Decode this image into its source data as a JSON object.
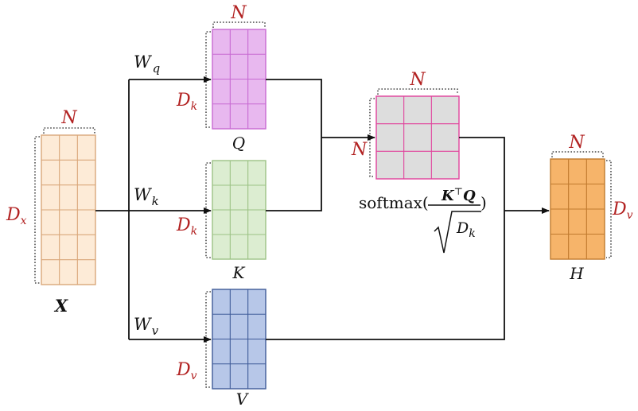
{
  "matrices": {
    "x": {
      "name": "X",
      "cols_label": "N",
      "rows_label_main": "D",
      "rows_label_sub": "x",
      "fill": "#fdebd7",
      "stroke": "#d9a77a"
    },
    "q": {
      "name": "Q",
      "cols_label": "N",
      "rows_label_main": "D",
      "rows_label_sub": "k",
      "fill": "#e8b8ef",
      "stroke": "#c76ad2"
    },
    "k": {
      "name": "K",
      "cols_label": "",
      "rows_label_main": "D",
      "rows_label_sub": "k",
      "fill": "#dcedd1",
      "stroke": "#9cc285"
    },
    "v": {
      "name": "V",
      "cols_label": "",
      "rows_label_main": "D",
      "rows_label_sub": "v",
      "fill": "#b7c7e8",
      "stroke": "#3f5b98"
    },
    "a": {
      "name": "",
      "cols_label": "N",
      "rows_label_main": "N",
      "rows_label_sub": "",
      "fill": "#dddddd",
      "stroke": "#e0439c"
    },
    "h": {
      "name": "H",
      "cols_label": "N",
      "rows_label_main": "D",
      "rows_label_sub": "v",
      "fill": "#f6b46a",
      "stroke": "#c07a2e"
    }
  },
  "weights": {
    "q": {
      "main": "W",
      "sub": "q"
    },
    "k": {
      "main": "W",
      "sub": "k"
    },
    "v": {
      "main": "W",
      "sub": "v"
    }
  },
  "formula": {
    "func": "softmax(",
    "numerator_k": "K",
    "numerator_t": "⊤",
    "numerator_q": "Q",
    "close": ")",
    "denom_main": "D",
    "denom_sub": "k"
  }
}
